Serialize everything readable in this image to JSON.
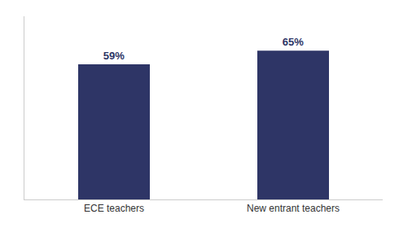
{
  "chart_data": {
    "type": "bar",
    "categories": [
      "ECE teachers",
      "New entrant teachers"
    ],
    "values": [
      59,
      65
    ],
    "value_labels": [
      "59%",
      "65%"
    ],
    "data_labels": true,
    "color": "#2E3566",
    "ylim": [
      0,
      80
    ],
    "grid": false,
    "tick_labels": "x"
  }
}
